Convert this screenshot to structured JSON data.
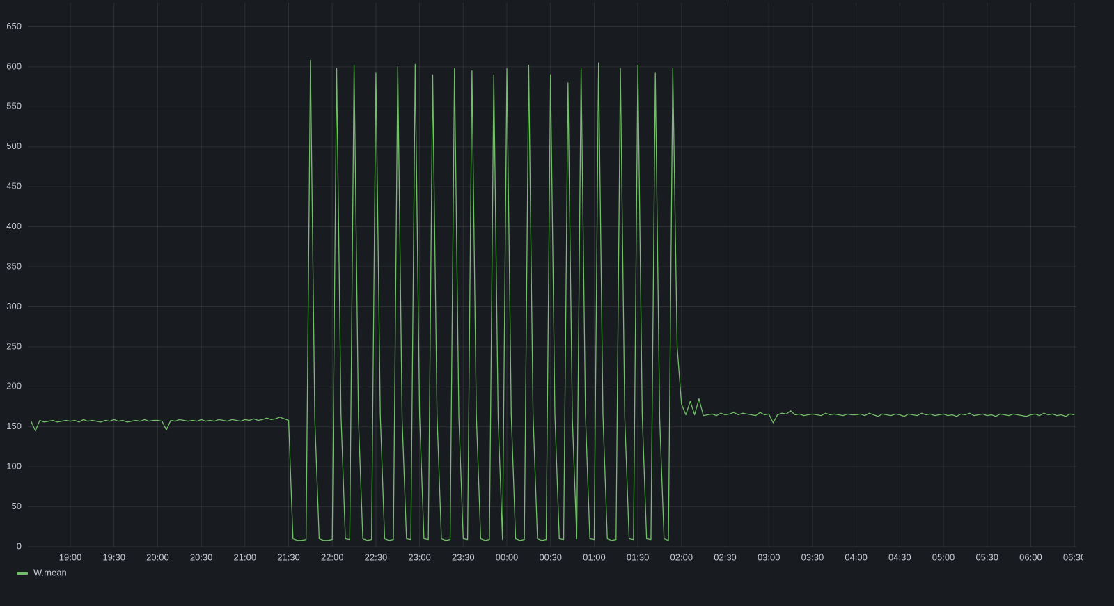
{
  "chart_data": {
    "type": "line",
    "x": [
      "18:33",
      "18:36",
      "18:39",
      "18:42",
      "18:45",
      "18:48",
      "18:51",
      "18:54",
      "18:57",
      "19:00",
      "19:03",
      "19:06",
      "19:09",
      "19:12",
      "19:15",
      "19:18",
      "19:21",
      "19:24",
      "19:27",
      "19:30",
      "19:33",
      "19:36",
      "19:39",
      "19:42",
      "19:45",
      "19:48",
      "19:51",
      "19:54",
      "19:57",
      "20:00",
      "20:03",
      "20:06",
      "20:09",
      "20:12",
      "20:15",
      "20:18",
      "20:21",
      "20:24",
      "20:27",
      "20:30",
      "20:33",
      "20:36",
      "20:39",
      "20:42",
      "20:45",
      "20:48",
      "20:51",
      "20:54",
      "20:57",
      "21:00",
      "21:03",
      "21:06",
      "21:09",
      "21:12",
      "21:15",
      "21:18",
      "21:21",
      "21:24",
      "21:27",
      "21:30",
      "21:33",
      "21:36",
      "21:39",
      "21:42",
      "21:45",
      "21:48",
      "21:51",
      "21:54",
      "21:57",
      "22:00",
      "22:03",
      "22:06",
      "22:09",
      "22:12",
      "22:15",
      "22:18",
      "22:21",
      "22:24",
      "22:27",
      "22:30",
      "22:33",
      "22:36",
      "22:39",
      "22:42",
      "22:45",
      "22:48",
      "22:51",
      "22:54",
      "22:57",
      "23:00",
      "23:03",
      "23:06",
      "23:09",
      "23:12",
      "23:15",
      "23:18",
      "23:21",
      "23:24",
      "23:27",
      "23:30",
      "23:33",
      "23:36",
      "23:39",
      "23:42",
      "23:45",
      "23:48",
      "23:51",
      "23:54",
      "23:57",
      "00:00",
      "00:03",
      "00:06",
      "00:09",
      "00:12",
      "00:15",
      "00:18",
      "00:21",
      "00:24",
      "00:27",
      "00:30",
      "00:33",
      "00:36",
      "00:39",
      "00:42",
      "00:45",
      "00:48",
      "00:51",
      "00:54",
      "00:57",
      "01:00",
      "01:03",
      "01:06",
      "01:09",
      "01:12",
      "01:15",
      "01:18",
      "01:21",
      "01:24",
      "01:27",
      "01:30",
      "01:33",
      "01:36",
      "01:39",
      "01:42",
      "01:45",
      "01:48",
      "01:51",
      "01:54",
      "01:57",
      "02:00",
      "02:03",
      "02:06",
      "02:09",
      "02:12",
      "02:15",
      "02:18",
      "02:21",
      "02:24",
      "02:27",
      "02:30",
      "02:33",
      "02:36",
      "02:39",
      "02:42",
      "02:45",
      "02:48",
      "02:51",
      "02:54",
      "02:57",
      "03:00",
      "03:03",
      "03:06",
      "03:09",
      "03:12",
      "03:15",
      "03:18",
      "03:21",
      "03:24",
      "03:27",
      "03:30",
      "03:33",
      "03:36",
      "03:39",
      "03:42",
      "03:45",
      "03:48",
      "03:51",
      "03:54",
      "03:57",
      "04:00",
      "04:03",
      "04:06",
      "04:09",
      "04:12",
      "04:15",
      "04:18",
      "04:21",
      "04:24",
      "04:27",
      "04:30",
      "04:33",
      "04:36",
      "04:39",
      "04:42",
      "04:45",
      "04:48",
      "04:51",
      "04:54",
      "04:57",
      "05:00",
      "05:03",
      "05:06",
      "05:09",
      "05:12",
      "05:15",
      "05:18",
      "05:21",
      "05:24",
      "05:27",
      "05:30",
      "05:33",
      "05:36",
      "05:39",
      "05:42",
      "05:45",
      "05:48",
      "05:51",
      "05:54",
      "05:57",
      "06:00",
      "06:03",
      "06:06",
      "06:09",
      "06:12",
      "06:15",
      "06:18",
      "06:21",
      "06:24",
      "06:27",
      "06:30"
    ],
    "series": [
      {
        "name": "W.mean",
        "color": "#73bf69",
        "values": [
          157,
          145,
          158,
          156,
          157,
          158,
          156,
          157,
          158,
          157,
          158,
          156,
          159,
          157,
          158,
          157,
          156,
          158,
          157,
          159,
          157,
          158,
          156,
          157,
          158,
          157,
          159,
          157,
          158,
          158,
          157,
          146,
          158,
          157,
          159,
          158,
          157,
          158,
          157,
          159,
          157,
          158,
          157,
          159,
          158,
          157,
          159,
          158,
          157,
          159,
          158,
          160,
          158,
          159,
          161,
          159,
          160,
          162,
          160,
          158,
          10,
          8,
          8,
          9,
          608,
          160,
          10,
          8,
          8,
          9,
          598,
          165,
          10,
          9,
          602,
          160,
          10,
          8,
          9,
          592,
          165,
          10,
          8,
          9,
          600,
          160,
          10,
          9,
          603,
          165,
          10,
          9,
          590,
          165,
          10,
          8,
          9,
          598,
          162,
          10,
          9,
          595,
          165,
          10,
          8,
          9,
          590,
          160,
          9,
          598,
          165,
          10,
          8,
          9,
          602,
          165,
          10,
          8,
          9,
          590,
          165,
          10,
          9,
          580,
          160,
          10,
          598,
          165,
          10,
          9,
          605,
          165,
          10,
          8,
          9,
          598,
          162,
          10,
          9,
          602,
          165,
          10,
          9,
          592,
          160,
          10,
          8,
          598,
          250,
          178,
          165,
          182,
          165,
          185,
          164,
          165,
          166,
          164,
          167,
          165,
          166,
          168,
          165,
          167,
          166,
          165,
          164,
          168,
          165,
          166,
          155,
          165,
          167,
          166,
          170,
          165,
          166,
          164,
          165,
          166,
          165,
          164,
          167,
          165,
          166,
          165,
          164,
          166,
          165,
          165,
          166,
          164,
          167,
          165,
          163,
          166,
          165,
          164,
          166,
          165,
          163,
          166,
          165,
          164,
          167,
          165,
          166,
          164,
          165,
          166,
          164,
          165,
          163,
          166,
          165,
          167,
          164,
          165,
          166,
          164,
          165,
          163,
          166,
          165,
          164,
          166,
          165,
          164,
          163,
          165,
          166,
          164,
          167,
          165,
          166,
          164,
          165,
          163,
          166,
          165
        ]
      }
    ],
    "xticks": [
      "19:00",
      "19:30",
      "20:00",
      "20:30",
      "21:00",
      "21:30",
      "22:00",
      "22:30",
      "23:00",
      "23:30",
      "00:00",
      "00:30",
      "01:00",
      "01:30",
      "02:00",
      "02:30",
      "03:00",
      "03:30",
      "04:00",
      "04:30",
      "05:00",
      "05:30",
      "06:00",
      "06:30"
    ],
    "ylim": [
      0,
      680
    ],
    "yticks": [
      0,
      50,
      100,
      150,
      200,
      250,
      300,
      350,
      400,
      450,
      500,
      550,
      600,
      650
    ],
    "grid": true,
    "legend": "bottom-left"
  }
}
